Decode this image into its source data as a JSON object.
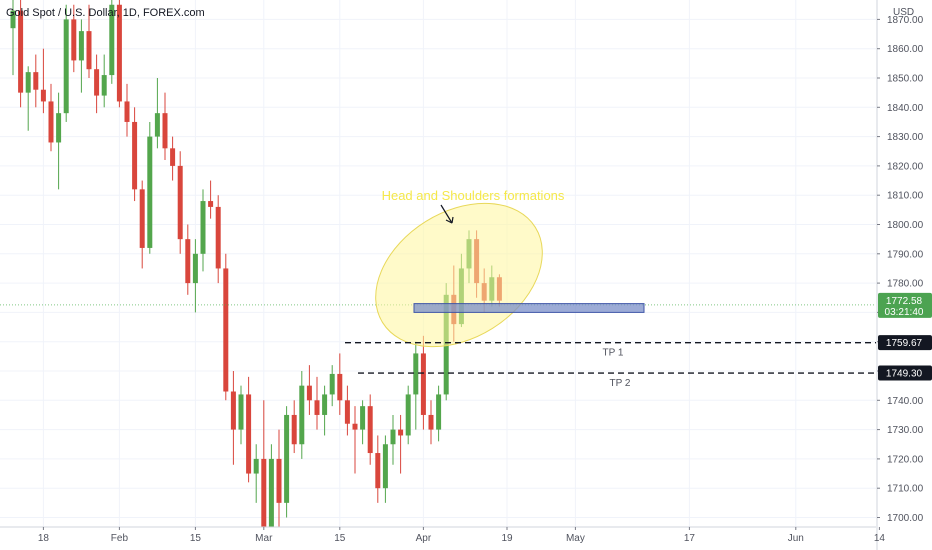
{
  "chart_data": {
    "type": "candlestick",
    "title": "Gold Spot / U.S. Dollar, 1D, FOREX.com",
    "currency": "USD",
    "y_ticks": [
      1700,
      1710,
      1720,
      1730,
      1740,
      1750,
      1760,
      1770,
      1780,
      1790,
      1800,
      1810,
      1820,
      1830,
      1840,
      1850,
      1860,
      1870
    ],
    "x_ticks": [
      {
        "label": "18",
        "bar": 4
      },
      {
        "label": "Feb",
        "bar": 14
      },
      {
        "label": "15",
        "bar": 24
      },
      {
        "label": "Mar",
        "bar": 33
      },
      {
        "label": "15",
        "bar": 43
      },
      {
        "label": "Apr",
        "bar": 54
      },
      {
        "label": "19",
        "bar": 65
      },
      {
        "label": "May",
        "bar": 74
      },
      {
        "label": "17",
        "bar": 89
      },
      {
        "label": "Jun",
        "bar": 103
      },
      {
        "label": "14",
        "bar": 114
      }
    ],
    "candles": [
      [
        1867,
        1877,
        1851,
        1873
      ],
      [
        1873,
        1880,
        1840,
        1845
      ],
      [
        1845,
        1854,
        1832,
        1852
      ],
      [
        1852,
        1858,
        1840,
        1846
      ],
      [
        1846,
        1860,
        1838,
        1842
      ],
      [
        1842,
        1848,
        1825,
        1828
      ],
      [
        1828,
        1845,
        1812,
        1838
      ],
      [
        1838,
        1875,
        1835,
        1870
      ],
      [
        1870,
        1875,
        1852,
        1856
      ],
      [
        1856,
        1870,
        1845,
        1866
      ],
      [
        1866,
        1875,
        1850,
        1853
      ],
      [
        1853,
        1858,
        1838,
        1844
      ],
      [
        1844,
        1858,
        1840,
        1851
      ],
      [
        1851,
        1878,
        1848,
        1875
      ],
      [
        1875,
        1880,
        1840,
        1842
      ],
      [
        1842,
        1848,
        1830,
        1835
      ],
      [
        1835,
        1840,
        1808,
        1812
      ],
      [
        1812,
        1815,
        1785,
        1792
      ],
      [
        1792,
        1835,
        1790,
        1830
      ],
      [
        1830,
        1850,
        1826,
        1838
      ],
      [
        1838,
        1845,
        1822,
        1826
      ],
      [
        1826,
        1830,
        1815,
        1820
      ],
      [
        1820,
        1825,
        1790,
        1795
      ],
      [
        1795,
        1800,
        1776,
        1780
      ],
      [
        1780,
        1795,
        1770,
        1790
      ],
      [
        1790,
        1812,
        1784,
        1808
      ],
      [
        1808,
        1815,
        1802,
        1806
      ],
      [
        1806,
        1810,
        1780,
        1785
      ],
      [
        1785,
        1790,
        1740,
        1743
      ],
      [
        1743,
        1750,
        1718,
        1730
      ],
      [
        1730,
        1745,
        1725,
        1742
      ],
      [
        1742,
        1748,
        1712,
        1715
      ],
      [
        1715,
        1725,
        1705,
        1720
      ],
      [
        1720,
        1740,
        1685,
        1690
      ],
      [
        1690,
        1725,
        1680,
        1720
      ],
      [
        1720,
        1730,
        1695,
        1705
      ],
      [
        1705,
        1738,
        1700,
        1735
      ],
      [
        1735,
        1740,
        1722,
        1725
      ],
      [
        1725,
        1750,
        1720,
        1745
      ],
      [
        1745,
        1752,
        1735,
        1740
      ],
      [
        1740,
        1748,
        1730,
        1735
      ],
      [
        1735,
        1745,
        1728,
        1742
      ],
      [
        1742,
        1752,
        1738,
        1749
      ],
      [
        1749,
        1756,
        1735,
        1740
      ],
      [
        1740,
        1745,
        1728,
        1732
      ],
      [
        1732,
        1738,
        1715,
        1730
      ],
      [
        1730,
        1740,
        1725,
        1738
      ],
      [
        1738,
        1742,
        1718,
        1722
      ],
      [
        1722,
        1728,
        1705,
        1710
      ],
      [
        1710,
        1728,
        1705,
        1725
      ],
      [
        1725,
        1735,
        1718,
        1730
      ],
      [
        1730,
        1735,
        1715,
        1728
      ],
      [
        1728,
        1745,
        1725,
        1742
      ],
      [
        1742,
        1760,
        1730,
        1756
      ],
      [
        1756,
        1762,
        1730,
        1735
      ],
      [
        1735,
        1740,
        1725,
        1730
      ],
      [
        1730,
        1745,
        1726,
        1742
      ],
      [
        1742,
        1780,
        1740,
        1776
      ],
      [
        1776,
        1786,
        1760,
        1766
      ],
      [
        1766,
        1790,
        1765,
        1785
      ],
      [
        1785,
        1798,
        1780,
        1795
      ],
      [
        1795,
        1798,
        1775,
        1780
      ],
      [
        1780,
        1785,
        1770,
        1774
      ],
      [
        1774,
        1786,
        1772,
        1782
      ],
      [
        1782,
        1783,
        1772,
        1774
      ]
    ],
    "current_price": 1772.58,
    "current_price_label": "1772.58",
    "countdown_label": "03:21:40",
    "support_zone": [
      1770,
      1773
    ],
    "targets": [
      {
        "label": "TP 1",
        "price": 1759.67,
        "price_label": "1759.67"
      },
      {
        "label": "TP 2",
        "price": 1749.3,
        "price_label": "1749.30"
      }
    ],
    "annotation_text": "Head and Shoulders formations",
    "colors": {
      "up": "#53a64c",
      "down": "#d9463c",
      "grid": "#f0f3fa",
      "current_line": "#4caf50",
      "price_badge": "#4ca351",
      "ellipse_fill": "#fff59d",
      "ellipse_stroke": "#e8d85a",
      "annotation": "#f5e84a",
      "zone_fill": "#7b8fc8",
      "zone_stroke": "#3f56a8",
      "target_badge": "#131722"
    }
  }
}
